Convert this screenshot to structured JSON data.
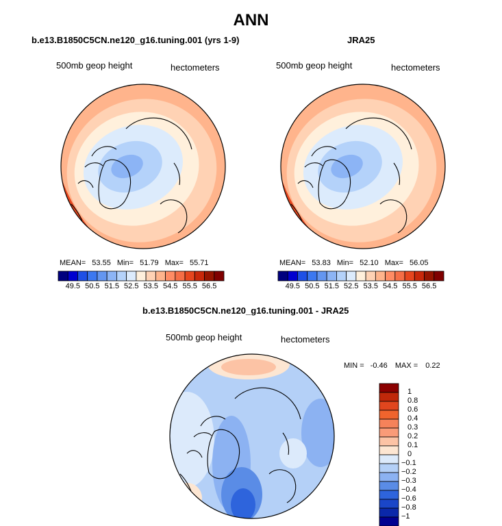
{
  "title": "ANN",
  "panels": [
    {
      "title": "b.e13.B1850C5CN.ne120_g16.tuning.001 (yrs 1-9)",
      "variable": "500mb geop height",
      "units": "hectometers",
      "stats": {
        "mean_label": "MEAN=",
        "mean": "53.55",
        "min_label": "Min=",
        "min": "51.79",
        "max_label": "Max=",
        "max": "55.71"
      }
    },
    {
      "title": "JRA25",
      "variable": "500mb geop height",
      "units": "hectometers",
      "stats": {
        "mean_label": "MEAN=",
        "mean": "53.83",
        "min_label": "Min=",
        "min": "52.10",
        "max_label": "Max=",
        "max": "56.05"
      }
    }
  ],
  "height_colorbar": {
    "labels": [
      "49.5",
      "50.5",
      "51.5",
      "52.5",
      "53.5",
      "54.5",
      "55.5",
      "56.5"
    ],
    "colors": [
      "#00007f",
      "#0000d0",
      "#1e50e6",
      "#3c78f0",
      "#6496f0",
      "#8cb4f5",
      "#b4d2fa",
      "#dcebfc",
      "#fff0dc",
      "#ffd2b4",
      "#ffb48c",
      "#ff8c64",
      "#f56e46",
      "#e6461e",
      "#c8280a",
      "#961400",
      "#7f0000"
    ]
  },
  "diff_panel": {
    "title": "b.e13.B1850C5CN.ne120_g16.tuning.001 - JRA25",
    "variable": "500mb geop height",
    "units": "hectometers",
    "min_label": "MIN =",
    "min": "-0.46",
    "max_label": "MAX =",
    "max": "0.22",
    "colorbar_labels": [
      "1",
      "0.8",
      "0.6",
      "0.4",
      "0.3",
      "0.2",
      "0.1",
      "0",
      "−0.1",
      "−0.2",
      "−0.3",
      "−0.4",
      "−0.6",
      "−0.8",
      "−1"
    ],
    "colorbar_colors": [
      "#8b0000",
      "#c0280a",
      "#e0461e",
      "#f0642d",
      "#f5825a",
      "#fa9b78",
      "#fcc3a5",
      "#fde6d2",
      "#dceafb",
      "#b4d0f7",
      "#8cb2f2",
      "#5a8ce6",
      "#2e64dc",
      "#1a46c8",
      "#0a28aa",
      "#000090"
    ]
  }
}
